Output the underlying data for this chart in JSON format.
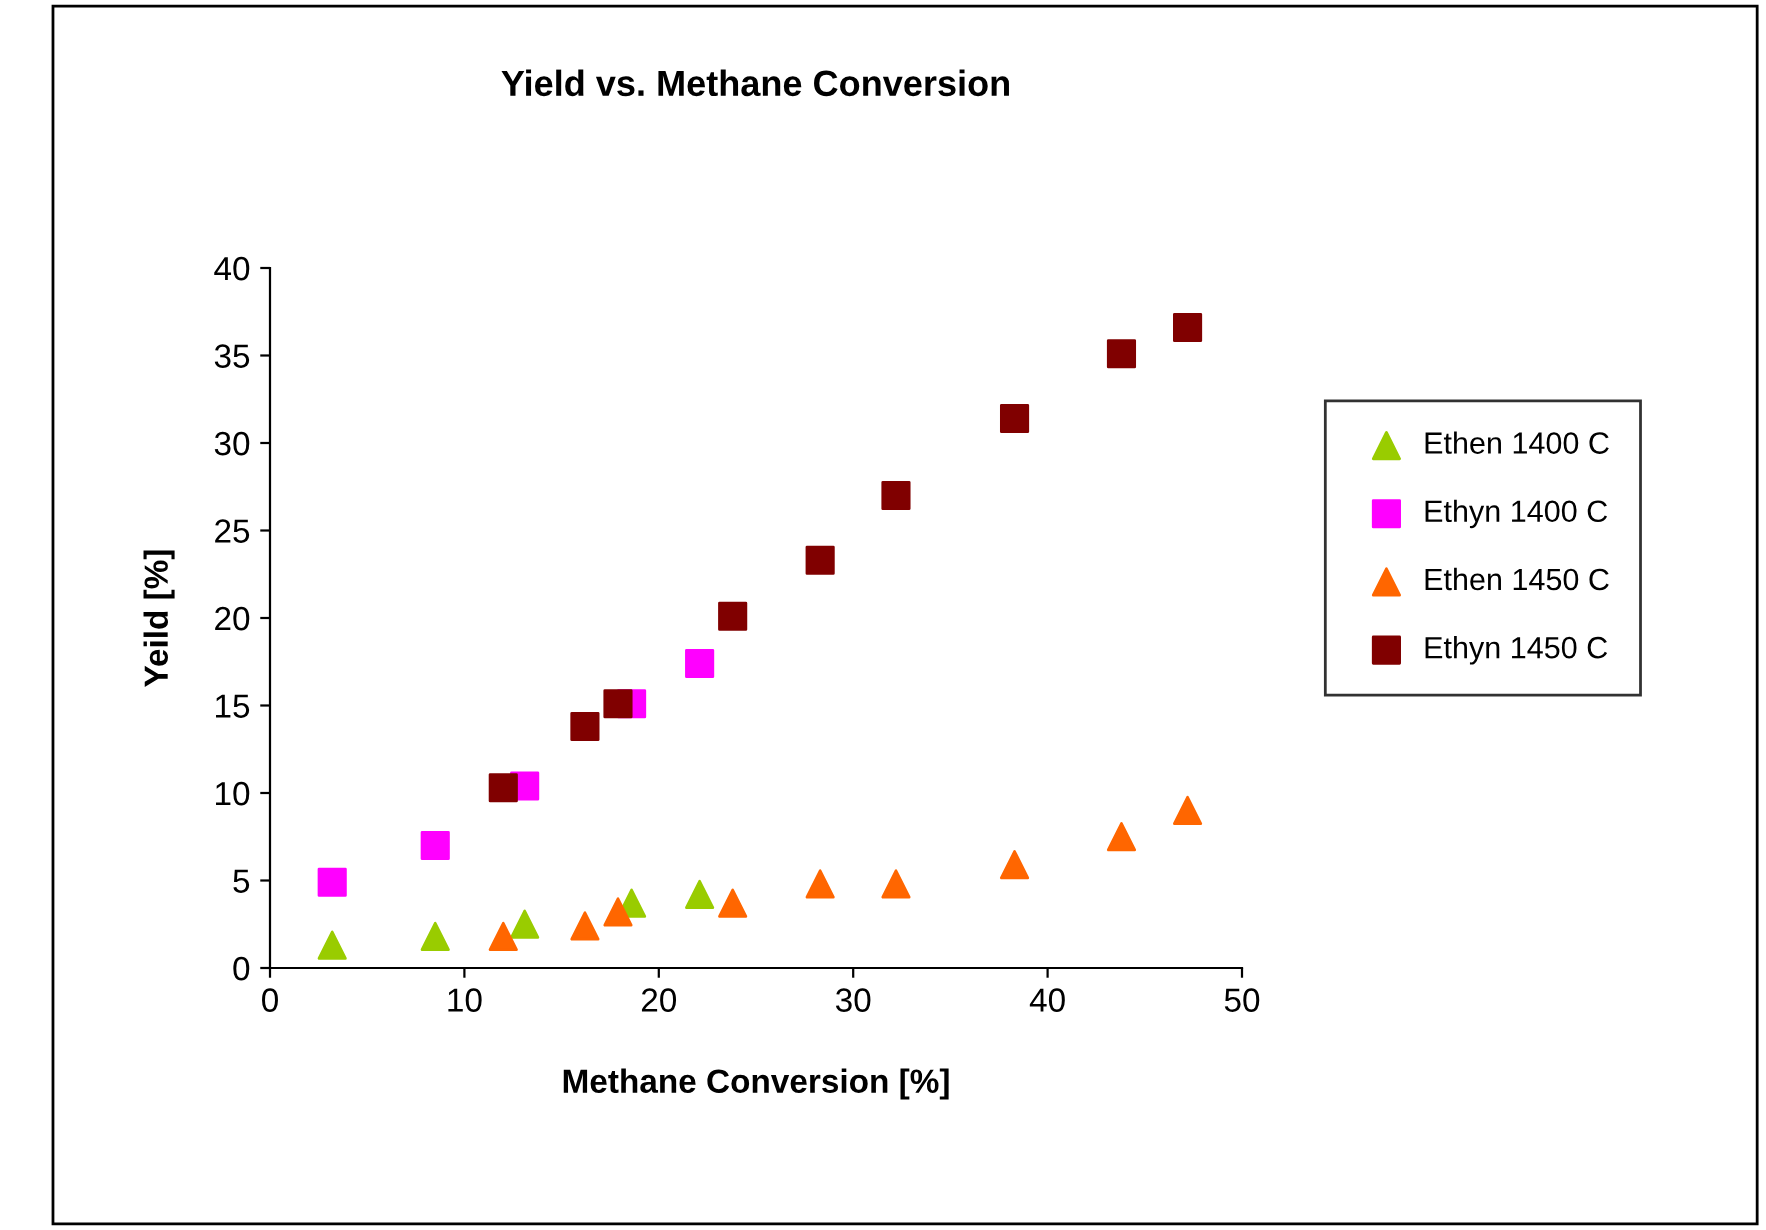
{
  "chart_data": {
    "type": "scatter",
    "title": "Yield vs. Methane Conversion",
    "xlabel": "Methane Conversion [%]",
    "ylabel": "Yeild [%]",
    "xlim": [
      0,
      50
    ],
    "xticks": [
      0,
      10,
      20,
      30,
      40,
      50
    ],
    "ylim": [
      0,
      40
    ],
    "yticks": [
      0,
      5,
      10,
      15,
      20,
      25,
      30,
      35,
      40
    ],
    "grid": false,
    "legend": "right",
    "series": [
      {
        "name": "Ethen 1400 C",
        "color": "#99cc00",
        "marker": "triangle",
        "x": [
          3.2,
          8.5,
          13.1,
          18.6,
          22.1
        ],
        "values": [
          1.3,
          1.8,
          2.5,
          3.7,
          4.2
        ]
      },
      {
        "name": "Ethyn 1400 C",
        "color": "#ff00ff",
        "marker": "square",
        "x": [
          3.2,
          8.5,
          13.1,
          18.6,
          22.1
        ],
        "values": [
          4.9,
          7.0,
          10.4,
          15.1,
          17.4
        ]
      },
      {
        "name": "Ethen 1450 C",
        "color": "#ff6600",
        "marker": "triangle",
        "x": [
          12.0,
          16.2,
          17.9,
          23.8,
          28.3,
          32.2,
          38.3,
          43.8,
          47.2
        ],
        "values": [
          1.8,
          2.4,
          3.2,
          3.7,
          4.8,
          4.8,
          5.9,
          7.5,
          9.0
        ]
      },
      {
        "name": "Ethyn 1450 C",
        "color": "#800000",
        "marker": "square",
        "x": [
          12.0,
          16.2,
          17.9,
          23.8,
          28.3,
          32.2,
          38.3,
          43.8,
          47.2
        ],
        "values": [
          10.3,
          13.8,
          15.1,
          20.1,
          23.3,
          27.0,
          31.4,
          35.1,
          36.6
        ]
      }
    ]
  }
}
